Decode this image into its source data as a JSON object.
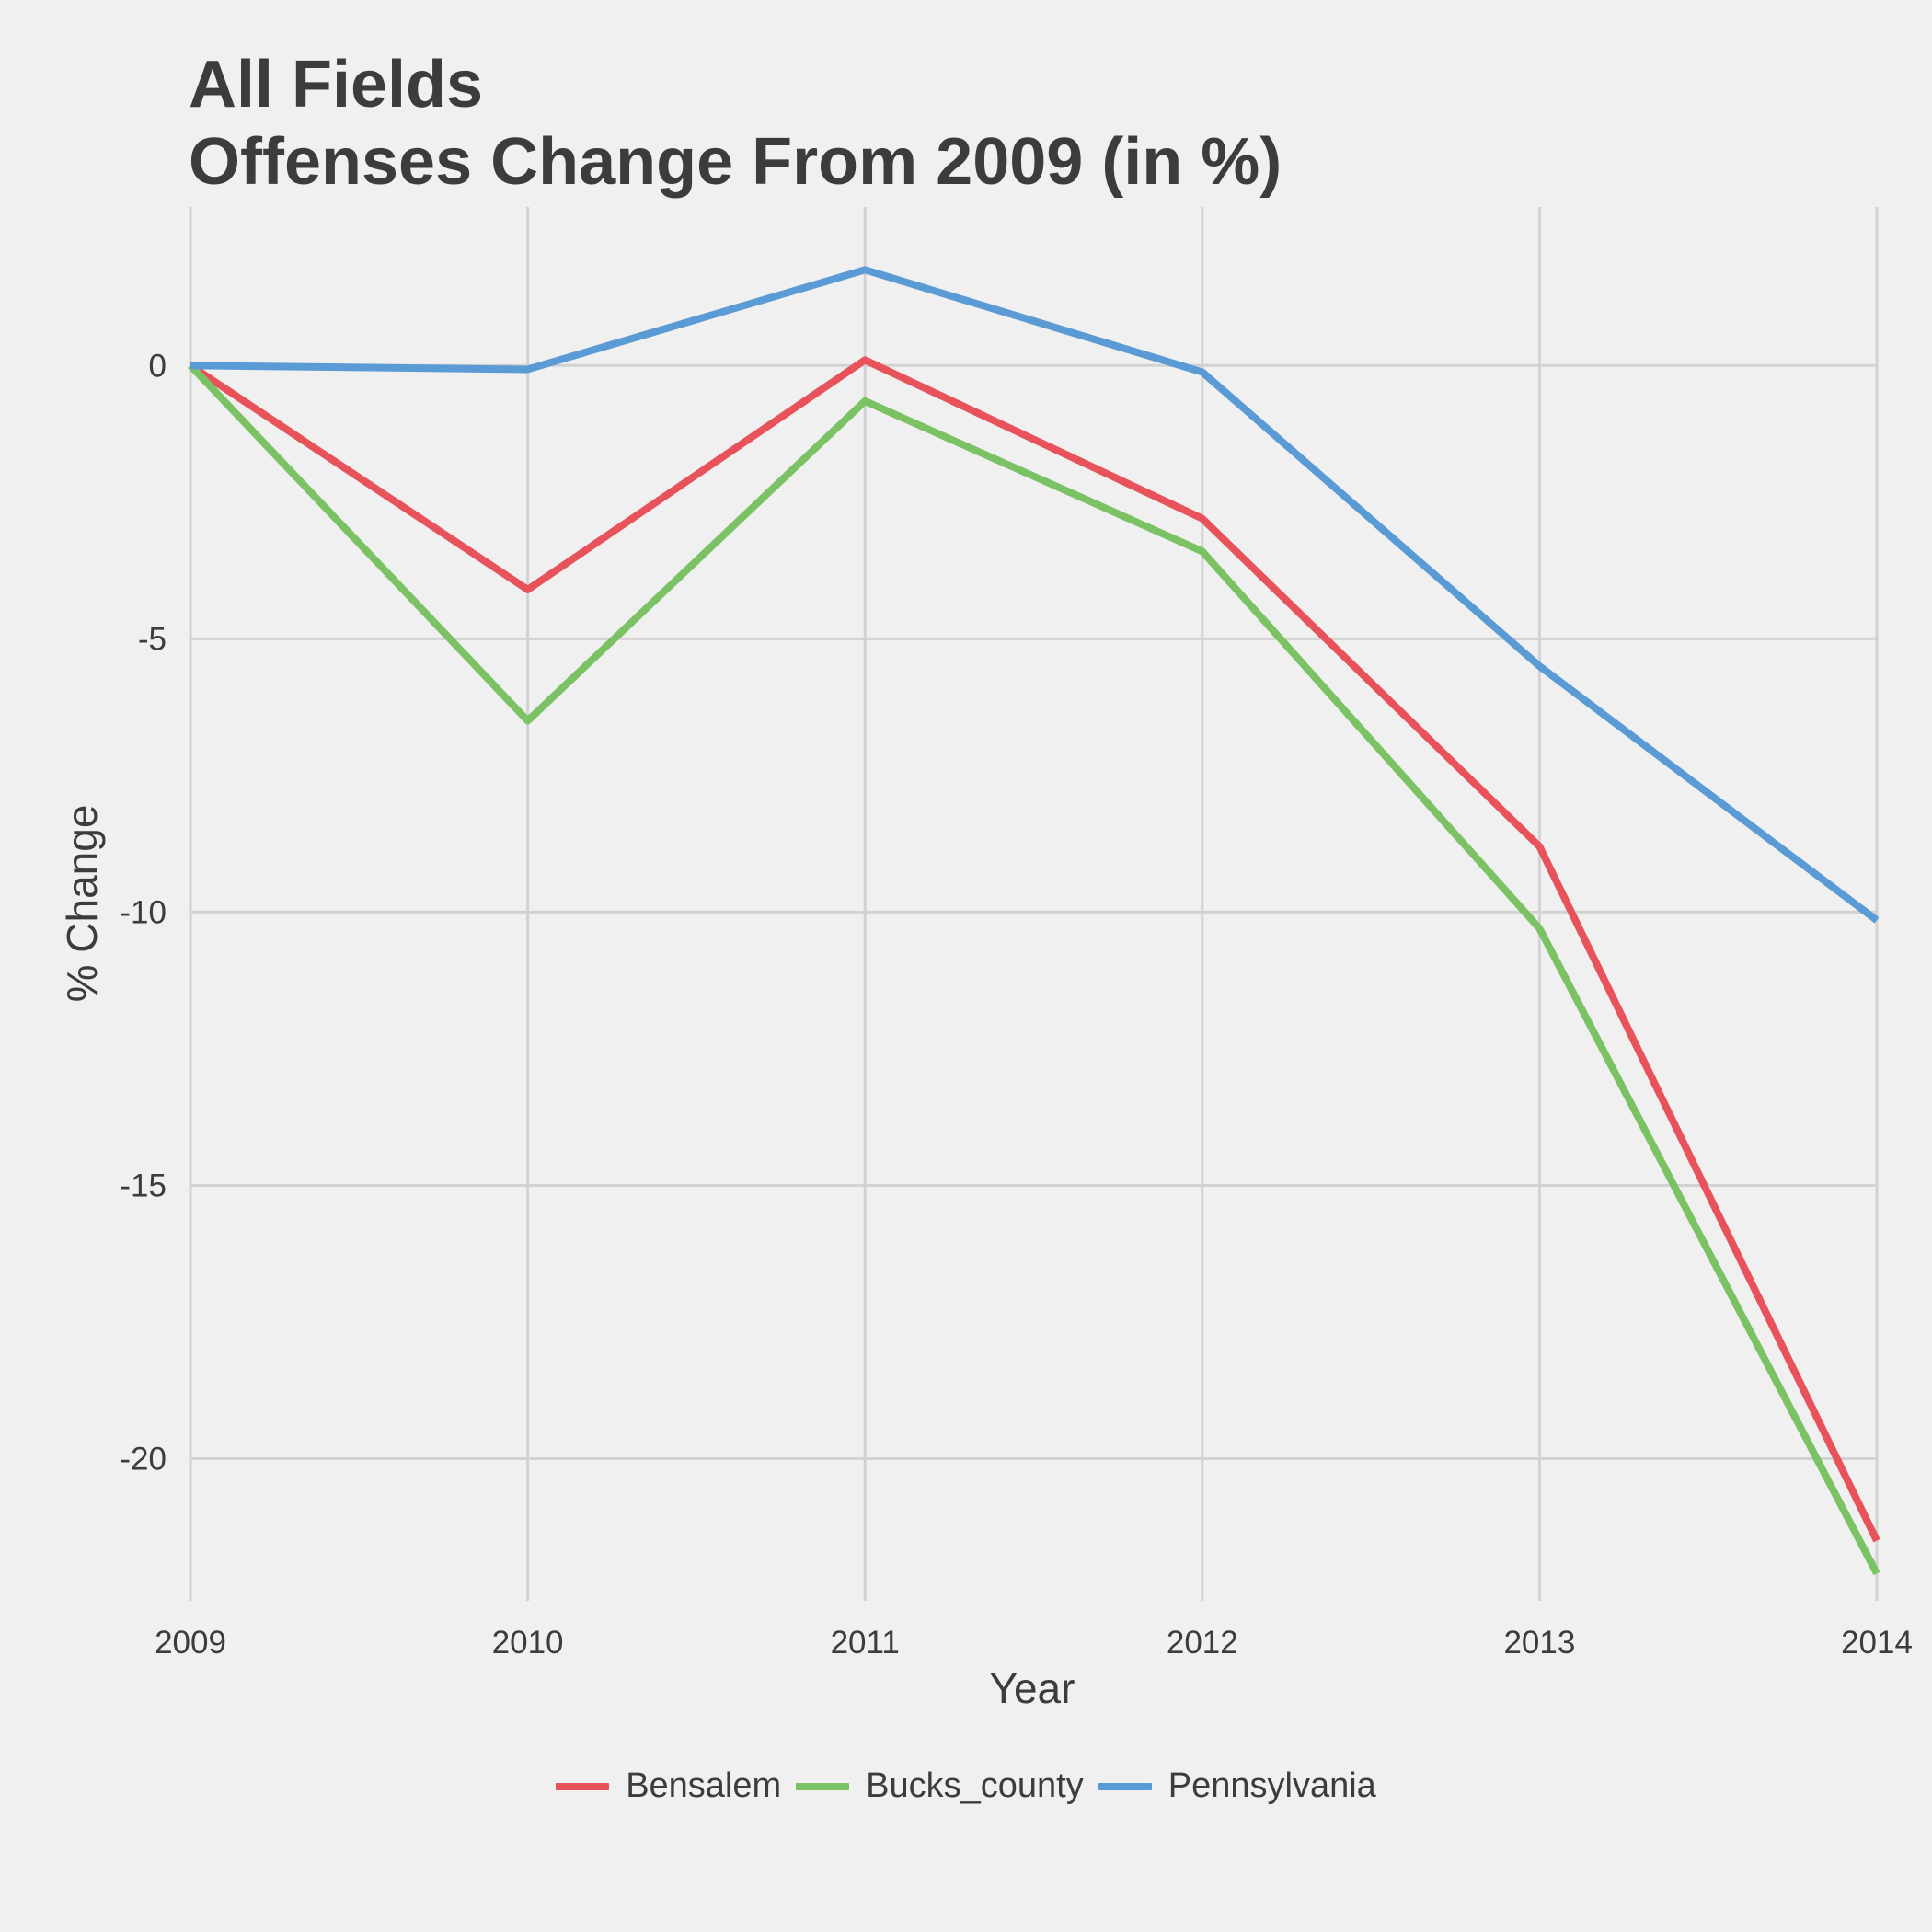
{
  "chart_data": {
    "type": "line",
    "title_line1": "All Fields",
    "title_line2": "Offenses Change From 2009 (in %)",
    "xlabel": "Year",
    "ylabel": "% Change",
    "x": [
      2009,
      2010,
      2011,
      2012,
      2013,
      2014
    ],
    "x_tick_labels": [
      "2009",
      "2010",
      "2011",
      "2012",
      "2013",
      "2014"
    ],
    "y_ticks": [
      0,
      -5,
      -10,
      -15,
      -20
    ],
    "y_tick_labels": [
      "0",
      "-5",
      "-10",
      "-15",
      "-20"
    ],
    "xlim": [
      2009,
      2014
    ],
    "ylim": [
      -22.6,
      2.9
    ],
    "grid": true,
    "legend_position": "bottom",
    "series": [
      {
        "name": "Bensalem",
        "color": "#e8525b",
        "values": [
          0,
          -4.1,
          0.1,
          -2.8,
          -8.8,
          -21.5
        ]
      },
      {
        "name": "Bucks_county",
        "color": "#7bc264",
        "values": [
          0,
          -6.5,
          -0.65,
          -3.4,
          -10.3,
          -22.1
        ]
      },
      {
        "name": "Pennsylvania",
        "color": "#5b9bd5",
        "values": [
          0,
          -0.07,
          1.75,
          -0.12,
          -5.5,
          -10.15
        ]
      }
    ]
  }
}
